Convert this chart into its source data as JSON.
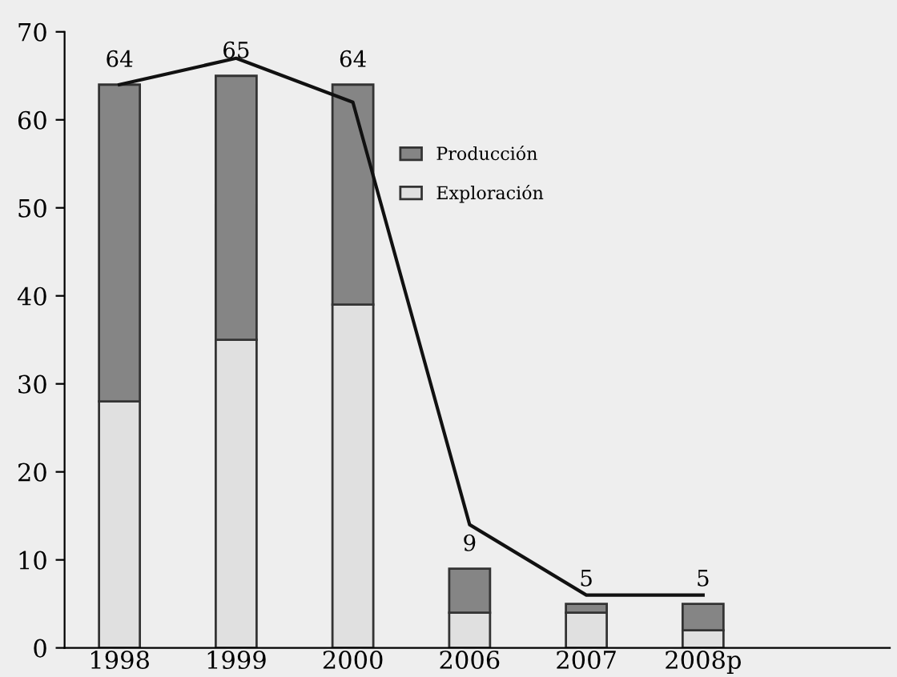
{
  "chart_data": {
    "type": "bar",
    "stacked": true,
    "categories": [
      "1998",
      "1999",
      "2000",
      "2006",
      "2007",
      "2008p"
    ],
    "series": [
      {
        "name": "Exploración",
        "color": "#e0e0e0",
        "values": [
          28,
          35,
          39,
          4,
          4,
          2
        ]
      },
      {
        "name": "Producción",
        "color": "#858585",
        "values": [
          36,
          30,
          25,
          5,
          1,
          3
        ]
      },
      {
        "type": "line",
        "color": "#111111",
        "values": [
          64,
          67,
          62,
          14,
          6,
          6
        ]
      }
    ],
    "totals": [
      "64",
      "65",
      "64",
      "9",
      "5",
      "5"
    ],
    "ylim": [
      0,
      70
    ],
    "yticks": [
      0,
      10,
      20,
      30,
      40,
      50,
      60,
      70
    ],
    "grid": false,
    "legend": "top right"
  }
}
